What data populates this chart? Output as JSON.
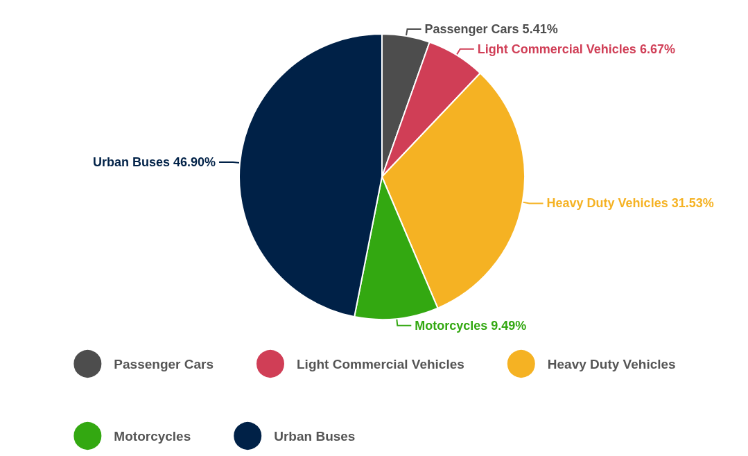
{
  "chart_data": {
    "type": "pie",
    "categories": [
      "Passenger Cars",
      "Light Commercial Vehicles",
      "Heavy Duty Vehicles",
      "Motorcycles",
      "Urban Buses"
    ],
    "values": [
      5.41,
      6.67,
      31.53,
      9.49,
      46.9
    ],
    "value_labels": [
      "5.41%",
      "6.67%",
      "31.53%",
      "9.49%",
      "46.90%"
    ],
    "colors": [
      "#4d4d4d",
      "#d03e56",
      "#f5b223",
      "#33a811",
      "#002147"
    ],
    "legend": "bottom"
  }
}
